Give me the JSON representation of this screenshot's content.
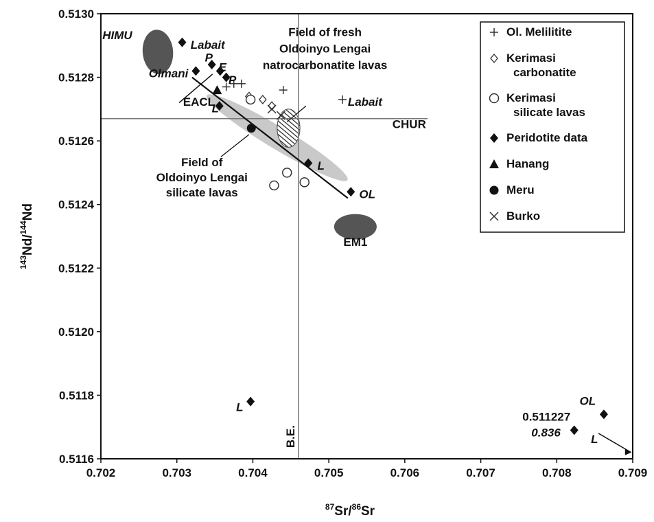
{
  "chart_data": {
    "type": "scatter",
    "xlabel": {
      "sup1": "87",
      "main1": "Sr/",
      "sup2": "86",
      "main2": "Sr"
    },
    "ylabel": {
      "sup1": "143",
      "main1": "Nd/",
      "sup2": "144",
      "main2": "Nd"
    },
    "xlim": [
      0.702,
      0.709
    ],
    "ylim": [
      0.5116,
      0.513
    ],
    "xticks": [
      "0.702",
      "0.703",
      "0.704",
      "0.705",
      "0.706",
      "0.707",
      "0.708",
      "0.709"
    ],
    "yticks": [
      "0.5116",
      "0.5118",
      "0.5120",
      "0.5122",
      "0.5124",
      "0.5126",
      "0.5128",
      "0.5130"
    ],
    "grid": false,
    "legend_position": "top-right",
    "legend": [
      {
        "marker": "plus",
        "lines": [
          "Ol. Melilitite"
        ]
      },
      {
        "marker": "diamond-open",
        "lines": [
          "Kerimasi",
          "carbonatite"
        ]
      },
      {
        "marker": "circle-open",
        "lines": [
          "Kerimasi",
          "silicate lavas"
        ]
      },
      {
        "marker": "diamond",
        "lines": [
          "Peridotite data"
        ]
      },
      {
        "marker": "triangle",
        "lines": [
          "Hanang"
        ]
      },
      {
        "marker": "circle",
        "lines": [
          "Meru"
        ]
      },
      {
        "marker": "x",
        "lines": [
          "Burko"
        ]
      }
    ],
    "series": [
      {
        "name": "Ol. Melilitite",
        "marker": "plus",
        "points": [
          {
            "x": 0.70365,
            "y": 0.51277
          },
          {
            "x": 0.70375,
            "y": 0.51278
          },
          {
            "x": 0.70385,
            "y": 0.51278
          },
          {
            "x": 0.7044,
            "y": 0.51276
          },
          {
            "x": 0.70518,
            "y": 0.51273
          }
        ]
      },
      {
        "name": "Kerimasi carbonatite",
        "marker": "diamond-open",
        "points": [
          {
            "x": 0.70395,
            "y": 0.51274
          },
          {
            "x": 0.70413,
            "y": 0.51273
          },
          {
            "x": 0.70425,
            "y": 0.51271
          }
        ]
      },
      {
        "name": "Kerimasi silicate lavas",
        "marker": "circle-open",
        "points": [
          {
            "x": 0.70397,
            "y": 0.51273
          },
          {
            "x": 0.70445,
            "y": 0.5125
          },
          {
            "x": 0.70468,
            "y": 0.51247
          },
          {
            "x": 0.70428,
            "y": 0.51246
          }
        ]
      },
      {
        "name": "Peridotite data",
        "marker": "diamond",
        "points": [
          {
            "x": 0.70307,
            "y": 0.51291
          },
          {
            "x": 0.70346,
            "y": 0.51284
          },
          {
            "x": 0.70325,
            "y": 0.51282
          },
          {
            "x": 0.70357,
            "y": 0.51282
          },
          {
            "x": 0.70365,
            "y": 0.5128
          },
          {
            "x": 0.70356,
            "y": 0.51271
          },
          {
            "x": 0.70473,
            "y": 0.51253
          },
          {
            "x": 0.70529,
            "y": 0.51244
          },
          {
            "x": 0.70397,
            "y": 0.51178
          },
          {
            "x": 0.70823,
            "y": 0.51169
          },
          {
            "x": 0.70862,
            "y": 0.51174
          }
        ]
      },
      {
        "name": "Hanang",
        "marker": "triangle",
        "points": [
          {
            "x": 0.70353,
            "y": 0.51276
          }
        ]
      },
      {
        "name": "Meru",
        "marker": "circle",
        "points": [
          {
            "x": 0.70398,
            "y": 0.51264
          }
        ]
      },
      {
        "name": "Burko",
        "marker": "x",
        "points": [
          {
            "x": 0.70425,
            "y": 0.5127
          },
          {
            "x": 0.70437,
            "y": 0.51268
          }
        ]
      }
    ],
    "fields": [
      {
        "id": "himu",
        "cx": 0.70275,
        "cy": 0.51288,
        "rx": 0.0002,
        "ry": 7e-05,
        "rot": -5,
        "fill": "#555555"
      },
      {
        "id": "em1",
        "cx": 0.70535,
        "cy": 0.51233,
        "rx": 0.00028,
        "ry": 4e-05,
        "rot": 0,
        "fill": "#555555"
      },
      {
        "id": "silicate",
        "cx": 0.70432,
        "cy": 0.51261,
        "rx": 0.00108,
        "ry": 3.5e-05,
        "rot": 31,
        "fill": "#c9c9c9"
      },
      {
        "id": "natro",
        "cx": 0.70447,
        "cy": 0.51264,
        "rx": 0.00015,
        "ry": 6e-05,
        "rot": 0,
        "fill": "hatch"
      }
    ],
    "lines": {
      "chur_y": 0.51267,
      "chur_x_range": [
        0.702,
        0.7063
      ],
      "be_x": 0.7046,
      "eacl": {
        "x1": 0.7032,
        "y1": 0.5128,
        "x2": 0.70525,
        "y2": 0.51242
      }
    },
    "annotations": {
      "himu": "HIMU",
      "labait_top": "Labait",
      "p1": "P",
      "e": "E",
      "p2": "P",
      "olmani": "Olmani",
      "eacl": "EACL",
      "l1": "L",
      "labait_right": "Labait",
      "chur": "CHUR",
      "l2": "L",
      "ol1": "OL",
      "em1": "EM1",
      "be": "B.E.",
      "l3": "L",
      "ol2": "OL",
      "val1": "0.511227",
      "val2": "0.836",
      "l4": "L",
      "fresh_field": [
        "Field of fresh",
        "Oldoinyo Lengai",
        "natrocarbonatite lavas"
      ],
      "silicate_field": [
        "Field of",
        "Oldoinyo Lengai",
        "silicate lavas"
      ]
    }
  }
}
